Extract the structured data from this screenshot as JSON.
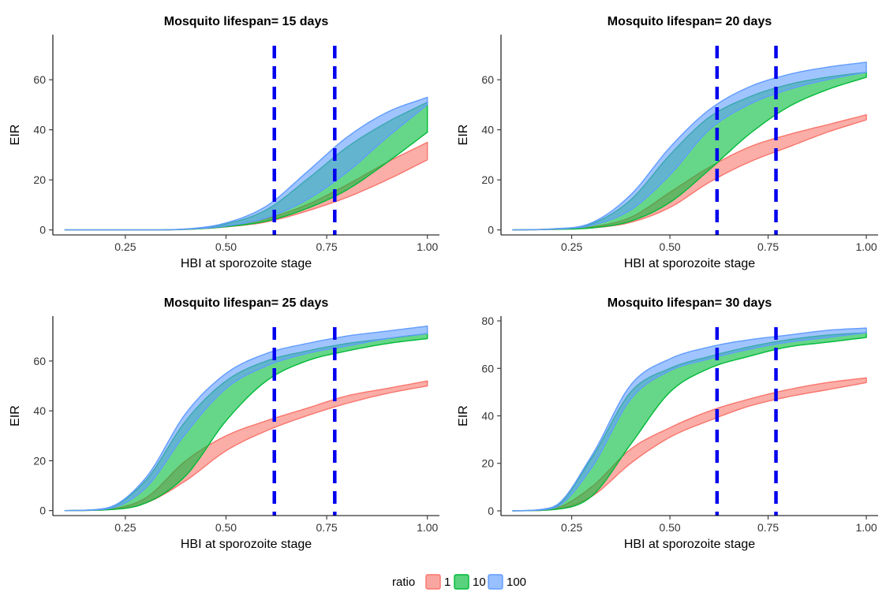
{
  "legend": {
    "title": "ratio",
    "items": [
      {
        "label": "1",
        "color": "#F8766D"
      },
      {
        "label": "10",
        "color": "#00BA38"
      },
      {
        "label": "100",
        "color": "#619CFF"
      }
    ]
  },
  "chart_data": [
    {
      "type": "area",
      "title": "Mosquito lifespan= 15 days",
      "xlabel": "HBI at sporozoite stage",
      "ylabel": "EIR",
      "xlim": [
        0.07,
        1.03
      ],
      "ylim": [
        -2,
        78
      ],
      "xticks": [
        "0.25",
        "0.50",
        "0.75",
        "1.00"
      ],
      "yticks": [
        "0",
        "20",
        "40",
        "60"
      ],
      "vlines": [
        0.62,
        0.77
      ],
      "grid": false,
      "legend": "bottom",
      "x": [
        0.1,
        0.2,
        0.3,
        0.4,
        0.5,
        0.6,
        0.7,
        0.8,
        0.9,
        1.0
      ],
      "series": [
        {
          "name": "1",
          "lower": [
            0,
            0,
            0,
            0.2,
            1.2,
            3.2,
            7.5,
            13,
            20,
            28
          ],
          "upper": [
            0,
            0,
            0,
            0.3,
            1.6,
            4.5,
            10,
            18,
            27,
            35
          ]
        },
        {
          "name": "10",
          "lower": [
            0,
            0,
            0,
            0.2,
            1.3,
            3.5,
            8.5,
            16,
            27,
            39
          ],
          "upper": [
            0,
            0,
            0,
            0.3,
            2.4,
            8,
            20,
            33,
            43,
            51
          ]
        },
        {
          "name": "100",
          "lower": [
            0,
            0,
            0,
            0.3,
            1.6,
            4.8,
            12,
            23,
            37,
            50
          ],
          "upper": [
            0,
            0,
            0,
            0.4,
            2.8,
            9.5,
            23,
            37,
            47,
            53
          ]
        }
      ]
    },
    {
      "type": "area",
      "title": "Mosquito lifespan= 20 days",
      "xlabel": "HBI at sporozoite stage",
      "ylabel": "EIR",
      "xlim": [
        0.07,
        1.03
      ],
      "ylim": [
        -2,
        78
      ],
      "xticks": [
        "0.25",
        "0.50",
        "0.75",
        "1.00"
      ],
      "yticks": [
        "0",
        "20",
        "40",
        "60"
      ],
      "vlines": [
        0.62,
        0.77
      ],
      "grid": false,
      "legend": "bottom",
      "x": [
        0.1,
        0.2,
        0.3,
        0.4,
        0.5,
        0.6,
        0.7,
        0.8,
        0.9,
        1.0
      ],
      "series": [
        {
          "name": "1",
          "lower": [
            0,
            0.2,
            0.8,
            3,
            9,
            19,
            27,
            33,
            39,
            44
          ],
          "upper": [
            0,
            0.3,
            1.2,
            5,
            15,
            25,
            33,
            38,
            42,
            46
          ]
        },
        {
          "name": "10",
          "lower": [
            0,
            0.2,
            0.8,
            3.5,
            11,
            24,
            38,
            49,
            56,
            61
          ],
          "upper": [
            0,
            0.4,
            2.4,
            12,
            30,
            45,
            53,
            58,
            61,
            63
          ]
        },
        {
          "name": "100",
          "lower": [
            0,
            0.3,
            1.8,
            8,
            22,
            40,
            50,
            56,
            60,
            63
          ],
          "upper": [
            0,
            0.4,
            2.8,
            14,
            33,
            48,
            57,
            62,
            65,
            67
          ]
        }
      ]
    },
    {
      "type": "area",
      "title": "Mosquito lifespan= 25 days",
      "xlabel": "HBI at sporozoite stage",
      "ylabel": "EIR",
      "xlim": [
        0.07,
        1.03
      ],
      "ylim": [
        -2,
        78
      ],
      "xticks": [
        "0.25",
        "0.50",
        "0.75",
        "1.00"
      ],
      "yticks": [
        "0",
        "20",
        "40",
        "60"
      ],
      "vlines": [
        0.62,
        0.77
      ],
      "grid": false,
      "legend": "bottom",
      "x": [
        0.1,
        0.2,
        0.3,
        0.4,
        0.5,
        0.6,
        0.7,
        0.8,
        0.9,
        1.0
      ],
      "series": [
        {
          "name": "1",
          "lower": [
            0,
            0.3,
            3,
            12,
            24,
            32,
            38,
            43,
            47,
            50
          ],
          "upper": [
            0,
            0.5,
            5,
            20,
            30,
            36,
            41,
            46,
            49,
            52
          ]
        },
        {
          "name": "10",
          "lower": [
            0,
            0.3,
            3,
            14,
            36,
            52,
            60,
            64,
            67,
            69
          ],
          "upper": [
            0,
            0.8,
            12,
            36,
            52,
            60,
            64,
            67,
            69,
            71
          ]
        },
        {
          "name": "100",
          "lower": [
            0,
            0.6,
            9,
            31,
            49,
            58,
            63,
            66,
            69,
            71
          ],
          "upper": [
            0,
            0.9,
            13,
            39,
            55,
            63,
            67,
            70,
            72,
            74
          ]
        }
      ]
    },
    {
      "type": "area",
      "title": "Mosquito lifespan= 30 days",
      "xlabel": "HBI at sporozoite stage",
      "ylabel": "EIR",
      "xlim": [
        0.07,
        1.03
      ],
      "ylim": [
        -2,
        82
      ],
      "xticks": [
        "0.25",
        "0.50",
        "0.75",
        "1.00"
      ],
      "yticks": [
        "0",
        "20",
        "40",
        "60",
        "80"
      ],
      "vlines": [
        0.62,
        0.77
      ],
      "grid": false,
      "legend": "bottom",
      "x": [
        0.1,
        0.2,
        0.3,
        0.4,
        0.5,
        0.6,
        0.7,
        0.8,
        0.9,
        1.0
      ],
      "series": [
        {
          "name": "1",
          "lower": [
            0,
            0.5,
            6,
            20,
            31,
            38,
            44,
            48,
            51,
            54
          ],
          "upper": [
            0,
            0.8,
            10,
            26,
            35,
            42,
            47,
            51,
            54,
            56
          ]
        },
        {
          "name": "10",
          "lower": [
            0,
            0.5,
            6,
            28,
            50,
            60,
            65,
            69,
            71,
            73
          ],
          "upper": [
            0,
            1.2,
            22,
            50,
            60,
            65,
            69,
            72,
            74,
            75
          ]
        },
        {
          "name": "100",
          "lower": [
            0,
            1.0,
            18,
            47,
            59,
            64,
            68,
            71,
            73,
            75
          ],
          "upper": [
            0,
            1.5,
            23,
            53,
            64,
            69,
            72,
            74,
            76,
            77
          ]
        }
      ]
    }
  ]
}
